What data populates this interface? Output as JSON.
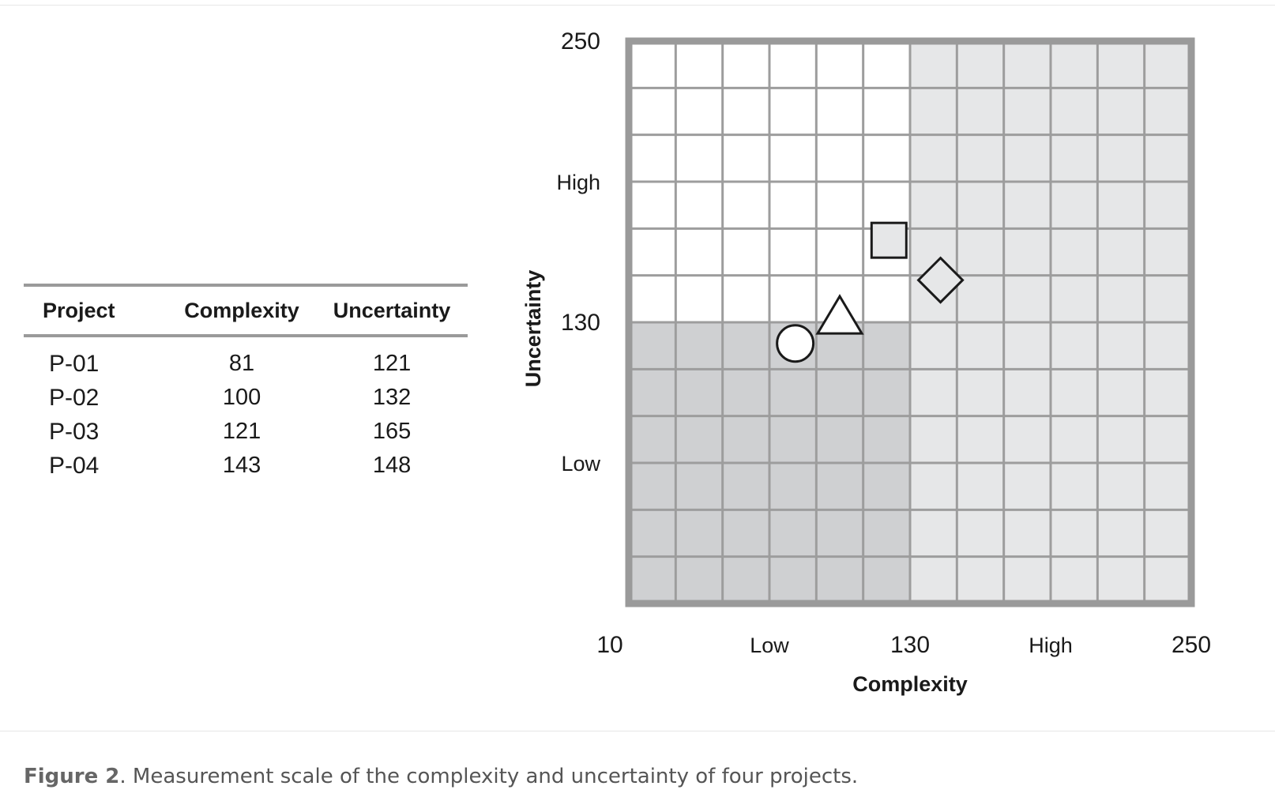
{
  "table": {
    "headers": [
      "Project",
      "Complexity",
      "Uncertainty"
    ],
    "rows": [
      [
        "P-01",
        "81",
        "121"
      ],
      [
        "P-02",
        "100",
        "132"
      ],
      [
        "P-03",
        "121",
        "165"
      ],
      [
        "P-04",
        "143",
        "148"
      ]
    ]
  },
  "caption": {
    "label": "Figure 2",
    "text": ". Measurement scale of the complexity and uncertainty of four projects."
  },
  "chart_data": {
    "type": "scatter",
    "xlabel": "Complexity",
    "ylabel": "Uncertainty",
    "xlim": [
      10,
      250
    ],
    "ylim": [
      10,
      250
    ],
    "divider": {
      "x": 130,
      "y": 130
    },
    "x_tick_labels": [
      {
        "value": 10,
        "label": "10"
      },
      {
        "value": 70,
        "label": "Low"
      },
      {
        "value": 130,
        "label": "130"
      },
      {
        "value": 190,
        "label": "High"
      },
      {
        "value": 250,
        "label": "250"
      }
    ],
    "y_tick_labels": [
      {
        "value": 250,
        "label": "250"
      },
      {
        "value": 190,
        "label": "High"
      },
      {
        "value": 130,
        "label": "130"
      },
      {
        "value": 70,
        "label": "Low"
      }
    ],
    "grid": true,
    "points": [
      {
        "project": "P-01",
        "x": 81,
        "y": 121,
        "marker": "circle"
      },
      {
        "project": "P-02",
        "x": 100,
        "y": 132,
        "marker": "triangle"
      },
      {
        "project": "P-03",
        "x": 121,
        "y": 165,
        "marker": "square"
      },
      {
        "project": "P-04",
        "x": 143,
        "y": 148,
        "marker": "diamond"
      }
    ],
    "colors": {
      "quadrant_low_low": "#cfd0d2",
      "quadrant_high_x": "#e6e7e8",
      "quadrant_high_y": "#ffffff",
      "grid_line": "#9d9d9d",
      "frame": "#9a9a9a",
      "marker_fill": "#e6e7e8",
      "marker_fill_circle": "#ffffff",
      "marker_stroke": "#1a1a1a"
    }
  }
}
